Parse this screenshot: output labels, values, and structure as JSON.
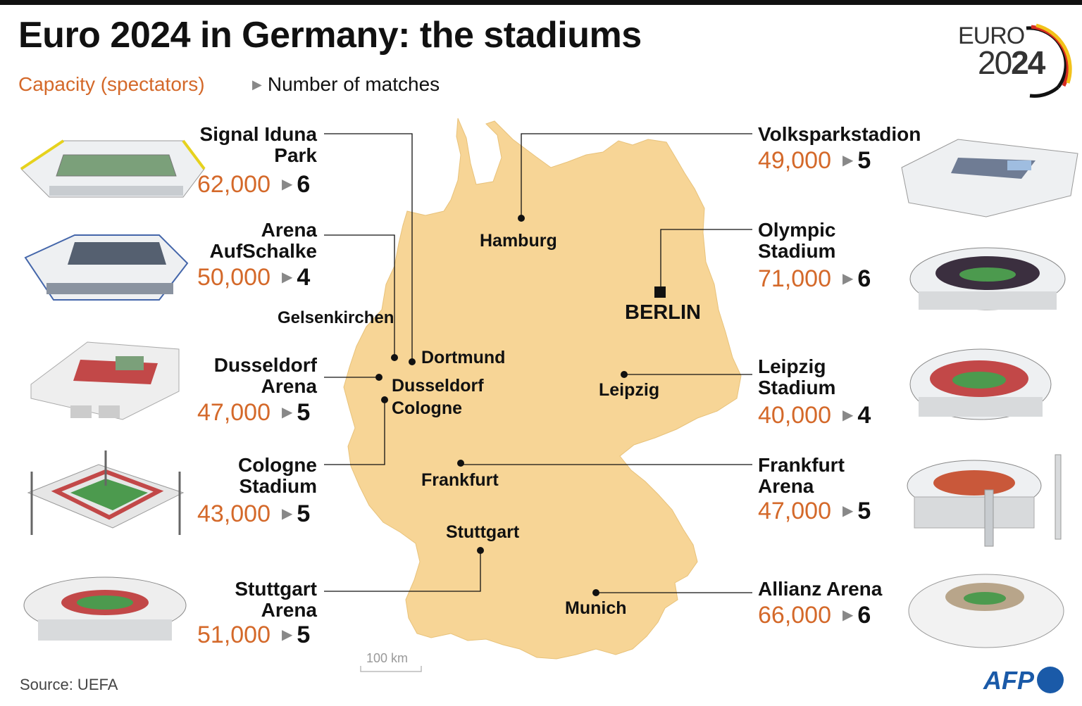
{
  "title": "Euro 2024 in Germany: the stadiums",
  "legend": {
    "capacity": "Capacity (spectators)",
    "matches": "Number of matches"
  },
  "logo": {
    "line1": "EURO",
    "year_a": "20",
    "year_b": "24"
  },
  "stadiums_left": [
    {
      "name_l1": "Signal Iduna",
      "name_l2": "Park",
      "capacity": "62,000",
      "matches": "6"
    },
    {
      "name_l1": "Arena",
      "name_l2": "AufSchalke",
      "capacity": "50,000",
      "matches": "4"
    },
    {
      "name_l1": "Dusseldorf",
      "name_l2": "Arena",
      "capacity": "47,000",
      "matches": "5"
    },
    {
      "name_l1": "Cologne",
      "name_l2": "Stadium",
      "capacity": "43,000",
      "matches": "5"
    },
    {
      "name_l1": "Stuttgart",
      "name_l2": "Arena",
      "capacity": "51,000",
      "matches": "5"
    }
  ],
  "stadiums_right": [
    {
      "name_l1": "Volksparkstadion",
      "name_l2": "",
      "capacity": "49,000",
      "matches": "5"
    },
    {
      "name_l1": "Olympic",
      "name_l2": "Stadium",
      "capacity": "71,000",
      "matches": "6"
    },
    {
      "name_l1": "Leipzig",
      "name_l2": "Stadium",
      "capacity": "40,000",
      "matches": "4"
    },
    {
      "name_l1": "Frankfurt",
      "name_l2": "Arena",
      "capacity": "47,000",
      "matches": "5"
    },
    {
      "name_l1": "Allianz Arena",
      "name_l2": "",
      "capacity": "66,000",
      "matches": "6"
    }
  ],
  "cities": {
    "hamburg": "Hamburg",
    "berlin": "BERLIN",
    "gelsenkirchen": "Gelsenkirchen",
    "dortmund": "Dortmund",
    "dusseldorf": "Dusseldorf",
    "cologne": "Cologne",
    "leipzig": "Leipzig",
    "frankfurt": "Frankfurt",
    "stuttgart": "Stuttgart",
    "munich": "Munich"
  },
  "scale": "100 km",
  "source": "Source: UEFA",
  "credit": "AFP",
  "colors": {
    "map_fill": "#f7d596",
    "capacity": "#d4692a",
    "lines": "#111111",
    "afp": "#1a5aa8"
  }
}
